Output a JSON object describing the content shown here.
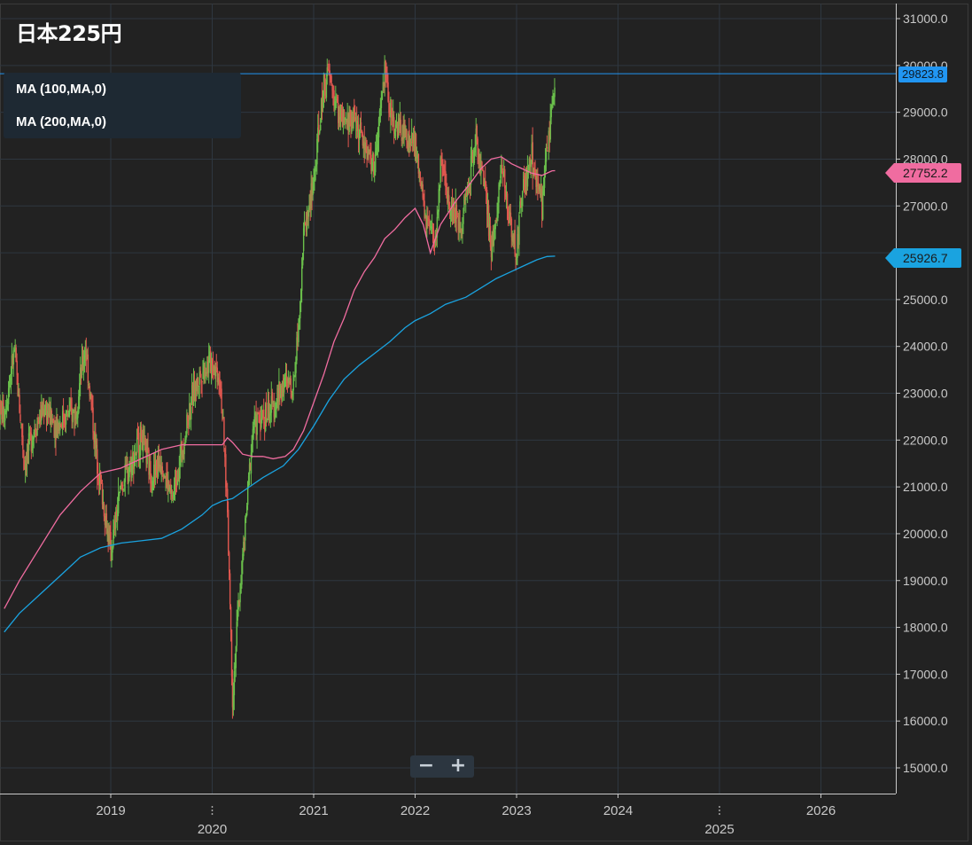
{
  "title": "日本225円",
  "legend": [
    {
      "label": "MA (100,MA,0)",
      "color": "#f06ca0"
    },
    {
      "label": "MA (200,MA,0)",
      "color": "#1aa3e0"
    }
  ],
  "zoom": {
    "minus": "−",
    "plus": "+"
  },
  "price_tags": {
    "last": {
      "value": "29823.8",
      "color": "#2196f3"
    },
    "ma100": {
      "value": "27752.2",
      "color": "#f06ca0"
    },
    "ma200": {
      "value": "25926.7",
      "color": "#1aa3e0"
    }
  },
  "colors": {
    "background": "#222222",
    "up": "#6abf4b",
    "down": "#e0574f",
    "grid": "#2e3740",
    "axis": "#c9c9c9"
  },
  "chart_data": {
    "type": "candlestick",
    "ylim": [
      14700,
      31300
    ],
    "y_ticks": [
      "15000.0",
      "16000.0",
      "17000.0",
      "18000.0",
      "19000.0",
      "20000.0",
      "21000.0",
      "22000.0",
      "23000.0",
      "24000.0",
      "25000.0",
      "26000.0",
      "27000.0",
      "28000.0",
      "29000.0",
      "30000.0",
      "31000.0"
    ],
    "x_ticks": [
      {
        "label": "2019",
        "year": 2019,
        "row": 1
      },
      {
        "label": "2020",
        "year": 2020,
        "row": 2
      },
      {
        "label": "2021",
        "year": 2021,
        "row": 1
      },
      {
        "label": "2022",
        "year": 2022,
        "row": 1
      },
      {
        "label": "2023",
        "year": 2023,
        "row": 1
      },
      {
        "label": "2024",
        "year": 2024,
        "row": 1
      },
      {
        "label": "2025",
        "year": 2025,
        "row": 2
      },
      {
        "label": "2026",
        "year": 2026,
        "row": 1
      }
    ],
    "price_path": [
      [
        2017.95,
        22600
      ],
      [
        2018.05,
        23900
      ],
      [
        2018.15,
        21500
      ],
      [
        2018.25,
        22300
      ],
      [
        2018.35,
        22700
      ],
      [
        2018.45,
        22300
      ],
      [
        2018.55,
        22500
      ],
      [
        2018.65,
        22600
      ],
      [
        2018.75,
        24000
      ],
      [
        2018.85,
        21800
      ],
      [
        2018.95,
        20300
      ],
      [
        2019.0,
        19600
      ],
      [
        2019.1,
        21000
      ],
      [
        2019.2,
        21500
      ],
      [
        2019.3,
        22100
      ],
      [
        2019.4,
        21200
      ],
      [
        2019.5,
        21600
      ],
      [
        2019.6,
        20700
      ],
      [
        2019.7,
        21800
      ],
      [
        2019.8,
        22900
      ],
      [
        2019.9,
        23500
      ],
      [
        2020.0,
        23700
      ],
      [
        2020.08,
        23300
      ],
      [
        2020.15,
        20500
      ],
      [
        2020.2,
        16500
      ],
      [
        2020.25,
        18200
      ],
      [
        2020.32,
        20000
      ],
      [
        2020.4,
        22300
      ],
      [
        2020.5,
        22500
      ],
      [
        2020.6,
        22700
      ],
      [
        2020.7,
        23200
      ],
      [
        2020.8,
        23200
      ],
      [
        2020.85,
        24500
      ],
      [
        2020.9,
        26400
      ],
      [
        2021.0,
        27500
      ],
      [
        2021.1,
        29600
      ],
      [
        2021.15,
        29800
      ],
      [
        2021.2,
        29300
      ],
      [
        2021.3,
        28700
      ],
      [
        2021.4,
        28900
      ],
      [
        2021.5,
        28300
      ],
      [
        2021.6,
        27800
      ],
      [
        2021.7,
        29900
      ],
      [
        2021.75,
        29100
      ],
      [
        2021.8,
        28700
      ],
      [
        2021.9,
        28500
      ],
      [
        2022.0,
        28300
      ],
      [
        2022.1,
        26700
      ],
      [
        2022.2,
        26200
      ],
      [
        2022.25,
        27800
      ],
      [
        2022.35,
        27000
      ],
      [
        2022.45,
        26600
      ],
      [
        2022.55,
        27800
      ],
      [
        2022.6,
        28500
      ],
      [
        2022.7,
        27100
      ],
      [
        2022.75,
        26000
      ],
      [
        2022.85,
        27800
      ],
      [
        2022.95,
        26500
      ],
      [
        2023.0,
        26000
      ],
      [
        2023.05,
        27300
      ],
      [
        2023.15,
        28000
      ],
      [
        2023.25,
        27000
      ],
      [
        2023.3,
        28200
      ],
      [
        2023.35,
        29100
      ],
      [
        2023.38,
        29824
      ]
    ],
    "ma100": [
      [
        2017.95,
        18400
      ],
      [
        2018.1,
        19000
      ],
      [
        2018.3,
        19700
      ],
      [
        2018.5,
        20400
      ],
      [
        2018.7,
        20900
      ],
      [
        2018.9,
        21300
      ],
      [
        2019.1,
        21400
      ],
      [
        2019.3,
        21600
      ],
      [
        2019.5,
        21800
      ],
      [
        2019.7,
        21900
      ],
      [
        2019.9,
        21900
      ],
      [
        2020.1,
        21900
      ],
      [
        2020.15,
        22050
      ],
      [
        2020.2,
        21950
      ],
      [
        2020.3,
        21700
      ],
      [
        2020.4,
        21650
      ],
      [
        2020.5,
        21650
      ],
      [
        2020.6,
        21600
      ],
      [
        2020.72,
        21650
      ],
      [
        2020.8,
        21800
      ],
      [
        2020.9,
        22200
      ],
      [
        2021.0,
        22800
      ],
      [
        2021.1,
        23400
      ],
      [
        2021.2,
        24100
      ],
      [
        2021.3,
        24600
      ],
      [
        2021.4,
        25200
      ],
      [
        2021.5,
        25600
      ],
      [
        2021.6,
        25900
      ],
      [
        2021.7,
        26300
      ],
      [
        2021.8,
        26500
      ],
      [
        2021.9,
        26750
      ],
      [
        2022.0,
        26950
      ],
      [
        2022.08,
        26600
      ],
      [
        2022.15,
        26000
      ],
      [
        2022.25,
        26600
      ],
      [
        2022.4,
        27100
      ],
      [
        2022.55,
        27500
      ],
      [
        2022.65,
        27800
      ],
      [
        2022.75,
        28000
      ],
      [
        2022.85,
        28050
      ],
      [
        2022.95,
        27900
      ],
      [
        2023.05,
        27800
      ],
      [
        2023.15,
        27700
      ],
      [
        2023.25,
        27650
      ],
      [
        2023.35,
        27750
      ],
      [
        2023.38,
        27752
      ]
    ],
    "ma200": [
      [
        2017.95,
        17900
      ],
      [
        2018.1,
        18300
      ],
      [
        2018.3,
        18700
      ],
      [
        2018.5,
        19100
      ],
      [
        2018.7,
        19500
      ],
      [
        2018.9,
        19700
      ],
      [
        2019.1,
        19800
      ],
      [
        2019.3,
        19850
      ],
      [
        2019.5,
        19900
      ],
      [
        2019.7,
        20100
      ],
      [
        2019.9,
        20400
      ],
      [
        2020.0,
        20600
      ],
      [
        2020.1,
        20700
      ],
      [
        2020.2,
        20750
      ],
      [
        2020.3,
        20900
      ],
      [
        2020.5,
        21200
      ],
      [
        2020.7,
        21450
      ],
      [
        2020.85,
        21800
      ],
      [
        2021.0,
        22300
      ],
      [
        2021.15,
        22850
      ],
      [
        2021.3,
        23300
      ],
      [
        2021.45,
        23600
      ],
      [
        2021.6,
        23850
      ],
      [
        2021.75,
        24100
      ],
      [
        2021.9,
        24400
      ],
      [
        2022.0,
        24550
      ],
      [
        2022.15,
        24700
      ],
      [
        2022.3,
        24900
      ],
      [
        2022.5,
        25050
      ],
      [
        2022.65,
        25250
      ],
      [
        2022.8,
        25450
      ],
      [
        2022.95,
        25600
      ],
      [
        2023.05,
        25700
      ],
      [
        2023.2,
        25850
      ],
      [
        2023.3,
        25920
      ],
      [
        2023.38,
        25927
      ]
    ]
  }
}
